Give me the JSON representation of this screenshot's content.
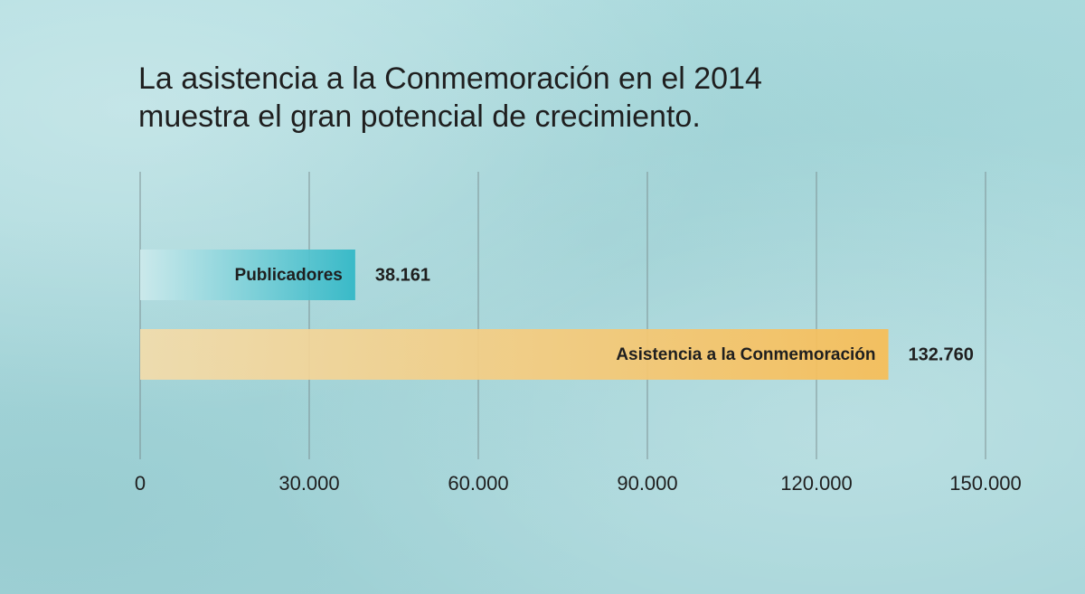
{
  "chart_data": {
    "type": "bar",
    "orientation": "horizontal",
    "title_lines": [
      "La asistencia a la Conmemoración en el 2014",
      "muestra el gran potencial de crecimiento."
    ],
    "categories": [
      "Publicadores",
      "Asistencia a la Conmemoración"
    ],
    "values": [
      38161,
      132760
    ],
    "value_labels": [
      "38.161",
      "132.760"
    ],
    "x_ticks": [
      0,
      30000,
      60000,
      90000,
      120000,
      150000
    ],
    "x_tick_labels": [
      "0",
      "30.000",
      "60.000",
      "90.000",
      "120.000",
      "150.000"
    ],
    "xlim": [
      0,
      150000
    ],
    "grid": true,
    "bar_colors": [
      [
        "#cdeaec",
        "#2fb7c6"
      ],
      [
        "#f3dcab",
        "#f8bd55"
      ]
    ]
  }
}
